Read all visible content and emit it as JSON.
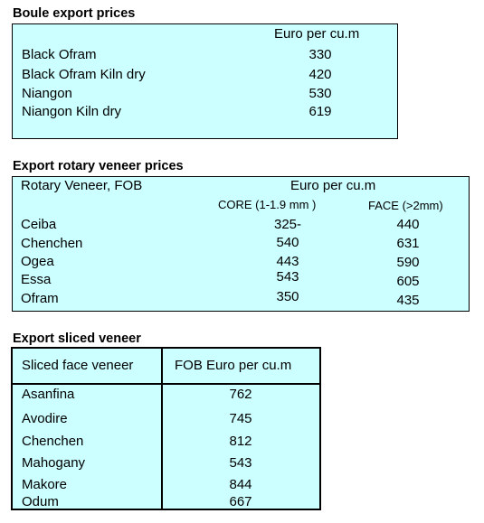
{
  "boule": {
    "title": "Boule export prices",
    "unit": "Euro per cu.m",
    "rows": [
      {
        "name": "Black Ofram",
        "value": "330"
      },
      {
        "name": "Black Ofram  Kiln dry",
        "value": "420"
      },
      {
        "name": "Niangon",
        "value": "530"
      },
      {
        "name": "Niangon Kiln dry",
        "value": "619"
      }
    ]
  },
  "rotary": {
    "title": "Export rotary veneer prices",
    "header_left": "Rotary Veneer,  FOB",
    "unit": "Euro  per cu.m",
    "col_core": "CORE (1-1.9 mm )",
    "col_face": "FACE (>2mm)",
    "rows": [
      {
        "name": "Ceiba",
        "core": "325-",
        "face": "440"
      },
      {
        "name": "Chenchen",
        "core": "540",
        "face": "631"
      },
      {
        "name": "Ogea",
        "core": "443",
        "face": "590"
      },
      {
        "name": "Essa",
        "core": "543",
        "face": "605"
      },
      {
        "name": "Ofram",
        "core": "350",
        "face": "435"
      }
    ]
  },
  "sliced": {
    "title": "Export sliced veneer",
    "col_name": "Sliced face veneer",
    "col_value": "FOB Euro per cu.m",
    "rows": [
      {
        "name": "Asanfina",
        "value": "762"
      },
      {
        "name": "Avodire",
        "value": "745"
      },
      {
        "name": "Chenchen",
        "value": "812"
      },
      {
        "name": "Mahogany",
        "value": "543"
      },
      {
        "name": "Makore",
        "value": "844"
      },
      {
        "name": "Odum",
        "value": "667"
      }
    ]
  }
}
